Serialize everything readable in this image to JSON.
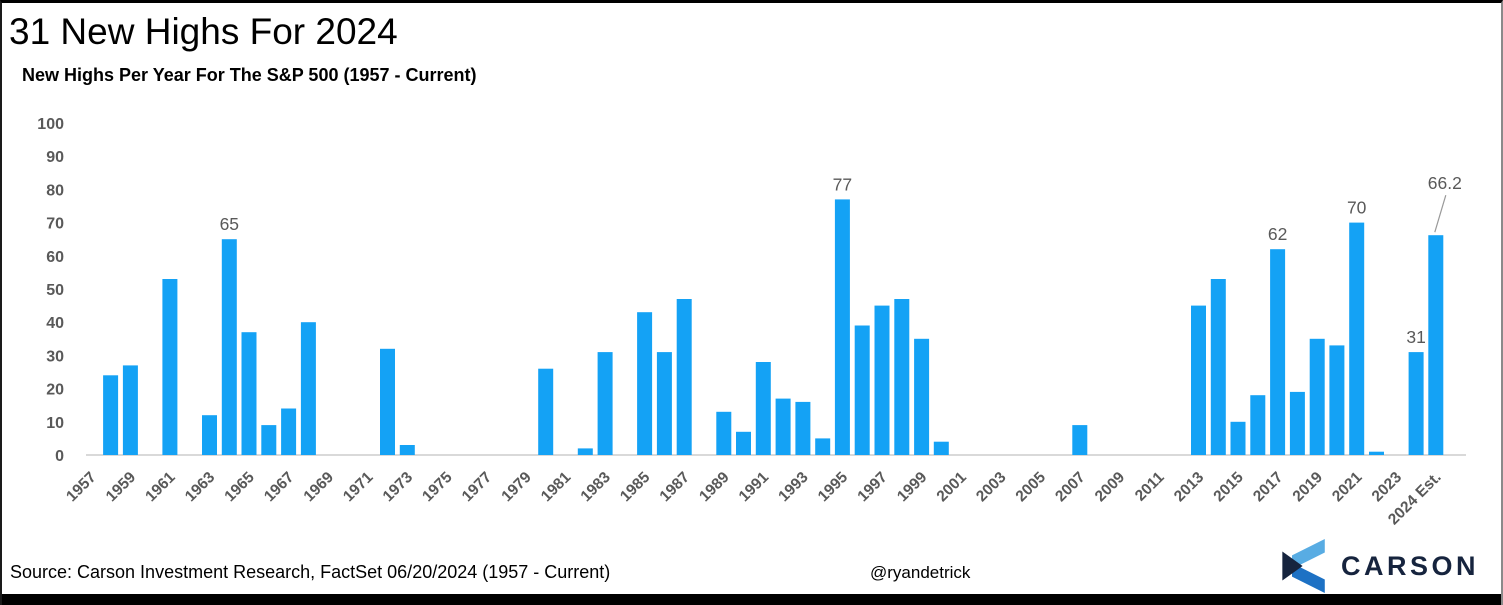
{
  "header": {
    "title": "31 New Highs For 2024",
    "subtitle": "New Highs Per Year For The S&P 500 (1957 - Current)"
  },
  "chart_data": {
    "type": "bar",
    "title": "New Highs Per Year For The S&P 500 (1957 - Current)",
    "xlabel": "",
    "ylabel": "",
    "ylim": [
      0,
      100
    ],
    "ytick_step": 10,
    "grid": false,
    "bar_color": "#14a2f5",
    "axis_line_color": "#d9d9d9",
    "axis_label_color": "#595959",
    "categories": [
      "1957",
      "1958",
      "1959",
      "1960",
      "1961",
      "1962",
      "1963",
      "1964",
      "1965",
      "1966",
      "1967",
      "1968",
      "1969",
      "1970",
      "1971",
      "1972",
      "1973",
      "1974",
      "1975",
      "1976",
      "1977",
      "1978",
      "1979",
      "1980",
      "1981",
      "1982",
      "1983",
      "1984",
      "1985",
      "1986",
      "1987",
      "1988",
      "1989",
      "1990",
      "1991",
      "1992",
      "1993",
      "1994",
      "1995",
      "1996",
      "1997",
      "1998",
      "1999",
      "2000",
      "2001",
      "2002",
      "2003",
      "2004",
      "2005",
      "2006",
      "2007",
      "2008",
      "2009",
      "2010",
      "2011",
      "2012",
      "2013",
      "2014",
      "2015",
      "2016",
      "2017",
      "2018",
      "2019",
      "2020",
      "2021",
      "2022",
      "2023",
      "2024",
      "2024 Est."
    ],
    "values": [
      0,
      24,
      27,
      0,
      53,
      0,
      12,
      65,
      37,
      9,
      14,
      40,
      0,
      0,
      0,
      32,
      3,
      0,
      0,
      0,
      0,
      0,
      0,
      26,
      0,
      2,
      31,
      0,
      43,
      31,
      47,
      0,
      13,
      7,
      28,
      17,
      16,
      5,
      77,
      39,
      45,
      47,
      35,
      4,
      0,
      0,
      0,
      0,
      0,
      0,
      9,
      0,
      0,
      0,
      0,
      0,
      45,
      53,
      10,
      18,
      62,
      19,
      35,
      33,
      70,
      1,
      0,
      31,
      66.2
    ],
    "xtick_labels_shown": [
      "1957",
      "1959",
      "1961",
      "1963",
      "1965",
      "1967",
      "1969",
      "1971",
      "1973",
      "1975",
      "1977",
      "1979",
      "1981",
      "1983",
      "1985",
      "1987",
      "1989",
      "1991",
      "1993",
      "1995",
      "1997",
      "1999",
      "2001",
      "2003",
      "2005",
      "2007",
      "2009",
      "2011",
      "2013",
      "2015",
      "2017",
      "2019",
      "2021",
      "2023",
      "2024 Est."
    ],
    "value_labels": [
      {
        "category": "1964",
        "text": "65"
      },
      {
        "category": "1995",
        "text": "77"
      },
      {
        "category": "2017",
        "text": "62"
      },
      {
        "category": "2021",
        "text": "70"
      },
      {
        "category": "2024",
        "text": "31"
      },
      {
        "category": "2024 Est.",
        "text": "66.2",
        "leader_line": true
      }
    ]
  },
  "footer": {
    "source": "Source: Carson Investment Research, FactSet 06/20/2024 (1957 - Current)",
    "handle": "@ryandetrick",
    "logo_text": "CARSON"
  },
  "colors": {
    "bar_blue": "#14a2f5",
    "label_gray": "#595959",
    "logo_navy": "#16243e",
    "logo_light_blue": "#58ace3",
    "logo_mid_blue": "#1d71c4"
  }
}
